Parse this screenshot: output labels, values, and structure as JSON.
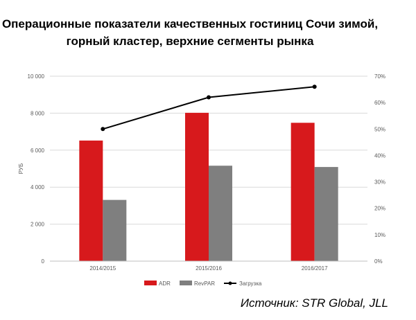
{
  "chart_data": {
    "type": "bar",
    "title": [
      "Операционные показатели качественных гостиниц Сочи зимой,",
      "горный кластер, верхние сегменты рынка"
    ],
    "categories": [
      "2014/2015",
      "2015/2016",
      "2016/2017"
    ],
    "series": [
      {
        "name": "ADR",
        "type": "bar",
        "axis": "left",
        "color": "#d7191c",
        "values": [
          6520,
          8020,
          7480
        ]
      },
      {
        "name": "RevPAR",
        "type": "bar",
        "axis": "left",
        "color": "#7f7f7f",
        "values": [
          3310,
          5160,
          5090
        ]
      },
      {
        "name": "Загрузка",
        "type": "line",
        "axis": "right",
        "color": "#000000",
        "values": [
          0.5,
          0.62,
          0.66
        ]
      }
    ],
    "ylabel": "РУБ",
    "ylim": [
      0,
      10000
    ],
    "yticks": [
      "0",
      "2 000",
      "4 000",
      "6 000",
      "8 000",
      "10 000"
    ],
    "y2lim": [
      0,
      0.7
    ],
    "y2ticks": [
      "0%",
      "10%",
      "20%",
      "30%",
      "40%",
      "50%",
      "60%",
      "70%"
    ],
    "grid": true,
    "legend": "bottom"
  },
  "source": "Источник: STR Global, JLL"
}
